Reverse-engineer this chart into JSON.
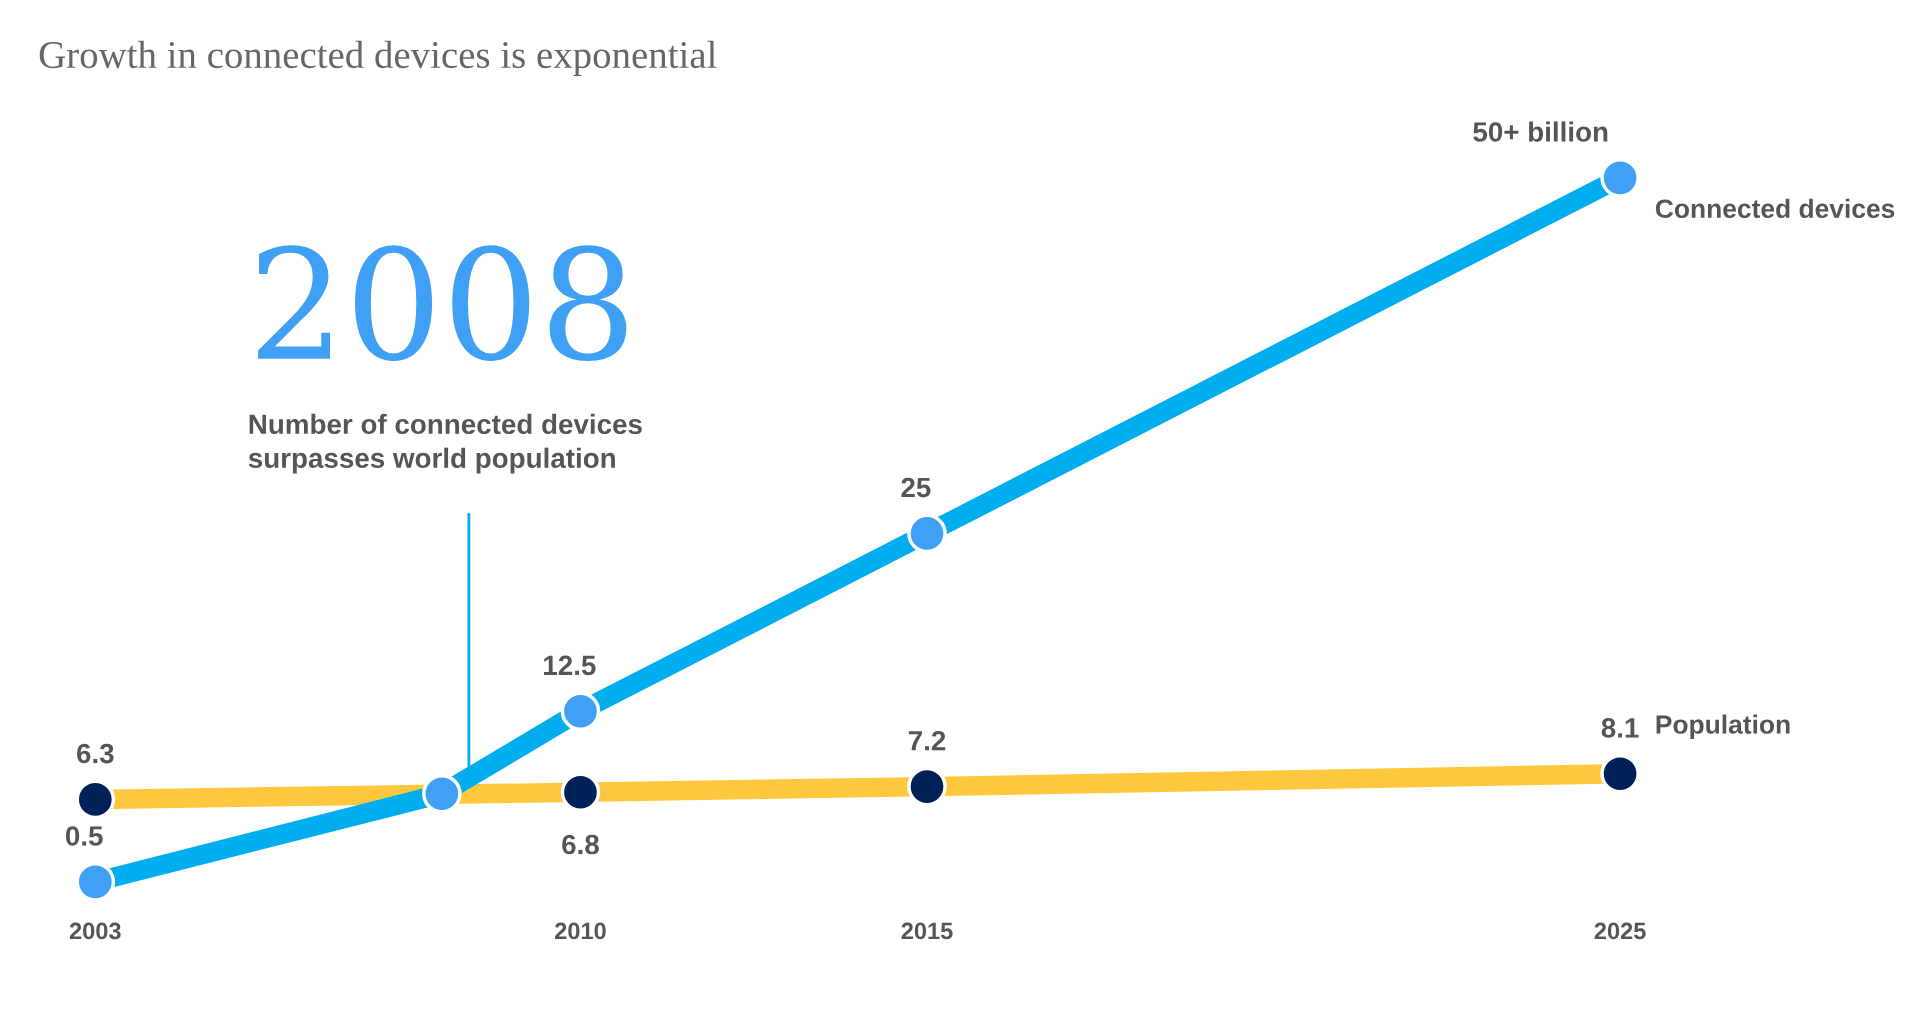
{
  "chart_data": {
    "type": "line",
    "title": "Growth in connected devices is exponential",
    "xlim": [
      2003,
      2025
    ],
    "xticks": [
      2003,
      2010,
      2015,
      2025
    ],
    "tick_labels": "x",
    "grid": false,
    "marker": "circle",
    "series": [
      {
        "name": "Connected devices",
        "color": "#00aeef",
        "x": [
          2003,
          2008,
          2010,
          2015,
          2025
        ],
        "values": [
          0.5,
          6.7,
          12.5,
          25,
          50
        ],
        "value_labels": [
          "0.5",
          null,
          "12.5",
          "25",
          "50+ billion"
        ]
      },
      {
        "name": "Population",
        "color": "#fdc83e",
        "x": [
          2003,
          2010,
          2015,
          2025
        ],
        "values": [
          6.3,
          6.8,
          7.2,
          8.1
        ],
        "value_labels": [
          "6.3",
          "6.8",
          "7.2",
          "8.1"
        ]
      }
    ],
    "annotations": [
      "2008",
      "Number of connected devices\nsurpasses world population"
    ]
  }
}
